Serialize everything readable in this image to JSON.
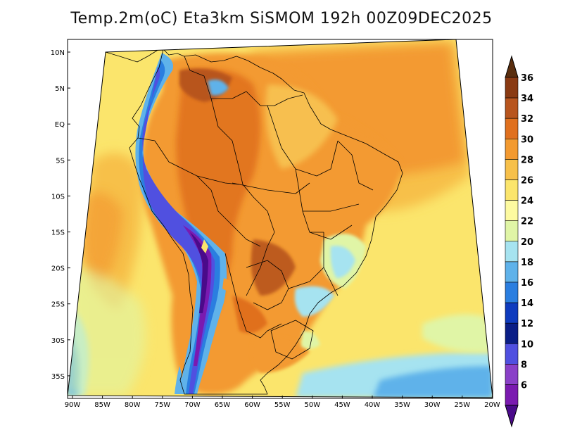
{
  "title": "Temp.2m(oC) Eta3km SiSMOM 192h 00Z09DEC2025",
  "map": {
    "lat_labels": [
      "10N",
      "5N",
      "EQ",
      "5S",
      "10S",
      "15S",
      "20S",
      "25S",
      "30S",
      "35S"
    ],
    "lon_labels": [
      "90W",
      "85W",
      "80W",
      "75W",
      "70W",
      "65W",
      "60W",
      "55W",
      "50W",
      "45W",
      "40W",
      "35W",
      "30W",
      "25W",
      "20W"
    ]
  },
  "colorbar": {
    "unit": "oC",
    "labels": [
      "36",
      "34",
      "32",
      "30",
      "28",
      "26",
      "24",
      "22",
      "20",
      "18",
      "16",
      "14",
      "12",
      "10",
      "8",
      "6"
    ],
    "colors": [
      "#5a2e0e",
      "#8a3a12",
      "#b8551e",
      "#e0701e",
      "#f39a30",
      "#f7c04a",
      "#fbe56c",
      "#fdfaa0",
      "#e0f5a6",
      "#a6e3f0",
      "#5fb2ea",
      "#2a7ee0",
      "#0e3bbe",
      "#0a1e86",
      "#5050e0",
      "#8a40c8",
      "#7a1ab0",
      "#4a0a8a"
    ]
  }
}
